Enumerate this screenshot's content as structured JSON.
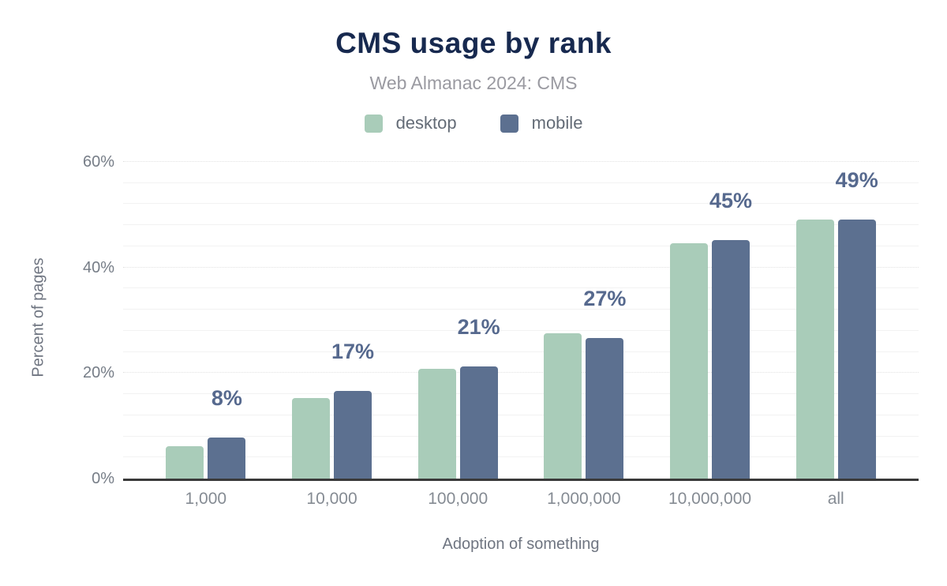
{
  "chart": {
    "title": "CMS usage by rank",
    "subtitle": "Web Almanac 2024: CMS"
  },
  "chart_data": {
    "type": "bar",
    "title": "CMS usage by rank",
    "subtitle": "Web Almanac 2024: CMS",
    "xlabel": "Adoption of something",
    "ylabel": "Percent of pages",
    "categories": [
      "1,000",
      "10,000",
      "100,000",
      "1,000,000",
      "10,000,000",
      "all"
    ],
    "series": [
      {
        "name": "desktop",
        "color": "#a9ccb9",
        "values": [
          6.1,
          15.3,
          20.8,
          27.5,
          44.6,
          49.1
        ]
      },
      {
        "name": "mobile",
        "color": "#5c7090",
        "values": [
          7.8,
          16.6,
          21.3,
          26.6,
          45.2,
          49.1
        ]
      }
    ],
    "bar_labels": [
      "8%",
      "17%",
      "21%",
      "27%",
      "45%",
      "49%"
    ],
    "bar_labels_above_series": "mobile",
    "ylim": [
      0,
      60
    ],
    "y_ticks": [
      {
        "value": 0,
        "label": "0%"
      },
      {
        "value": 20,
        "label": "20%"
      },
      {
        "value": 40,
        "label": "40%"
      },
      {
        "value": 60,
        "label": "60%"
      }
    ],
    "grid": true,
    "grid_minor_step": 4,
    "grid_major_step": 20,
    "legend_position": "top"
  },
  "colors": {
    "background": "#ffffff",
    "title": "#17294f",
    "subtitle": "#9a9aa1",
    "legend_text": "#636b76",
    "data_label": "#56698e",
    "tick_label": "#767d87",
    "xtick_label": "#858b93",
    "axis_title": "#6f7581",
    "grid_minor": "#f2f2f2",
    "grid_major": "#e2e2e2",
    "axis_line": "#3a3a3a",
    "desktop": "#a9ccb9",
    "mobile": "#5c7090"
  }
}
